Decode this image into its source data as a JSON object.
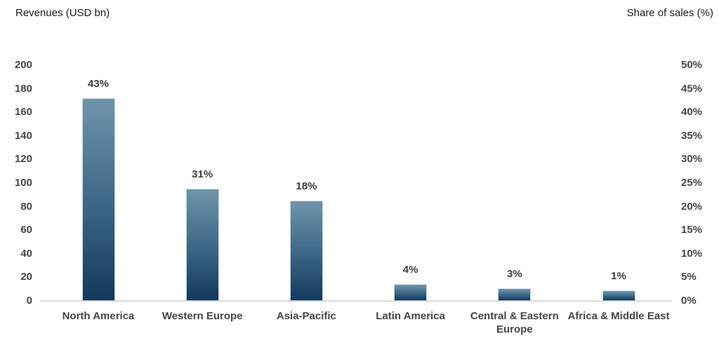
{
  "chart_data": {
    "type": "bar",
    "title": "",
    "categories": [
      "North America",
      "Western Europe",
      "Asia-Pacific",
      "Latin America",
      "Central & Eastern Europe",
      "Africa & Middle East"
    ],
    "series": [
      {
        "name": "Revenues (USD bn)",
        "values": [
          172,
          95,
          85,
          14,
          11,
          9
        ],
        "data_labels": [
          "43%",
          "31%",
          "18%",
          "4%",
          "3%",
          "1%"
        ]
      }
    ],
    "left_axis": {
      "title": "Revenues (USD bn)",
      "min": 0,
      "max": 200,
      "step": 20,
      "tick_labels": [
        "0",
        "20",
        "40",
        "60",
        "80",
        "100",
        "120",
        "140",
        "160",
        "180",
        "200"
      ]
    },
    "right_axis": {
      "title": "Share of sales (%)",
      "min": 0,
      "max": 50,
      "step": 5,
      "tick_labels": [
        "0%",
        "5%",
        "10%",
        "15%",
        "20%",
        "25%",
        "30%",
        "35%",
        "40%",
        "45%",
        "50%"
      ]
    },
    "grid": false,
    "legend": "none",
    "colors": {
      "bar_gradient_top": "#6f94aa",
      "bar_gradient_bottom": "#12395c",
      "bar_border": "#c7d8e2",
      "baseline": "#d9d9d9",
      "tick_text": "#464646",
      "data_label_text": "#3f3f3f",
      "axis_title_text": "#1a1a1a"
    }
  }
}
